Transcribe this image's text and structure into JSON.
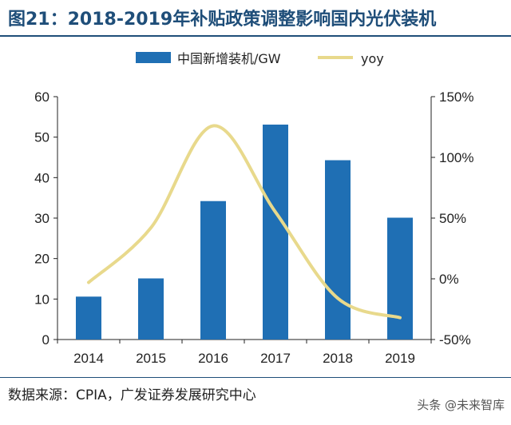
{
  "header": {
    "title": "图21：2018-2019年补贴政策调整影响国内光伏装机"
  },
  "footer": {
    "source": "数据来源：CPIA，广发证券发展研究中心",
    "watermark": "头条 @未来智库"
  },
  "colors": {
    "bar": "#1f6fb4",
    "line": "#e8d98c",
    "title": "#1f4e79",
    "axis": "#222222"
  },
  "chart_data": {
    "type": "bar",
    "title": "2018-2019年补贴政策调整影响国内光伏装机",
    "categories": [
      "2014",
      "2015",
      "2016",
      "2017",
      "2018",
      "2019"
    ],
    "series": [
      {
        "name": "中国新增装机/GW",
        "type": "bar",
        "axis": "left",
        "values": [
          10.6,
          15.1,
          34.2,
          53.1,
          44.3,
          30.1
        ]
      },
      {
        "name": "yoy",
        "type": "line",
        "axis": "right",
        "values": [
          -3,
          42,
          126,
          55,
          -16,
          -32
        ]
      }
    ],
    "ylim_left": [
      0,
      60
    ],
    "yticks_left": [
      "0",
      "10",
      "20",
      "30",
      "40",
      "50",
      "60"
    ],
    "ylim_right": [
      -50,
      150
    ],
    "yticks_right": [
      "-50%",
      "0%",
      "50%",
      "100%",
      "150%"
    ],
    "legend": "top"
  }
}
